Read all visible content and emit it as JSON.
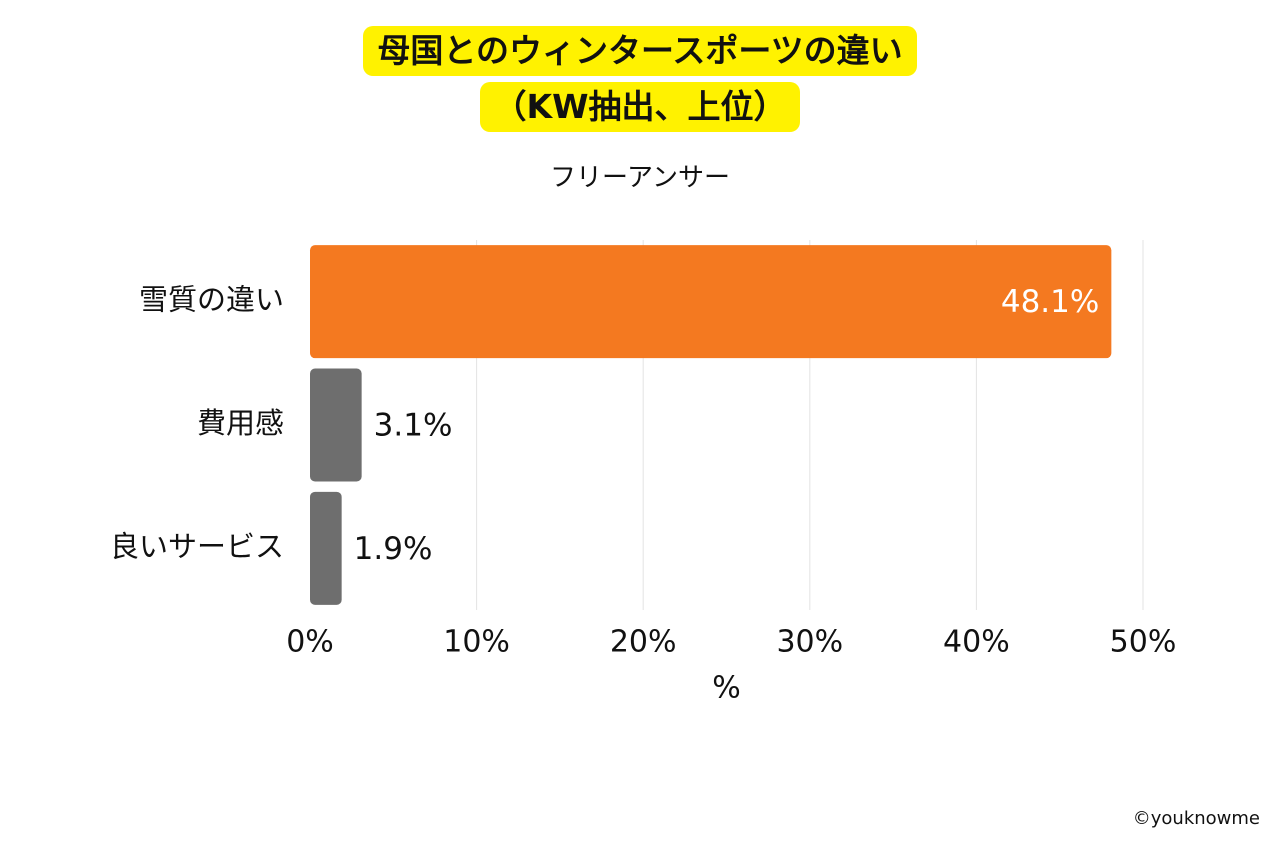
{
  "chart_data": {
    "type": "bar",
    "orientation": "horizontal",
    "title": [
      "母国とのウィンタースポーツの違い",
      "（KW抽出、上位）"
    ],
    "subtitle": "フリーアンサー",
    "categories": [
      "雪質の違い",
      "費用感",
      "良いサービス"
    ],
    "values": [
      48.1,
      3.1,
      1.9
    ],
    "value_labels": [
      "48.1%",
      "3.1%",
      "1.9%"
    ],
    "bar_colors": [
      "#f47920",
      "#6e6e6e",
      "#6e6e6e"
    ],
    "xlabel": "%",
    "xlim": [
      0,
      50
    ],
    "xticks": [
      0,
      10,
      20,
      30,
      40,
      50
    ],
    "xtick_labels": [
      "0%",
      "10%",
      "20%",
      "30%",
      "40%",
      "50%"
    ],
    "grid": "vertical"
  },
  "footer": {
    "copyright": "©youknowme"
  }
}
